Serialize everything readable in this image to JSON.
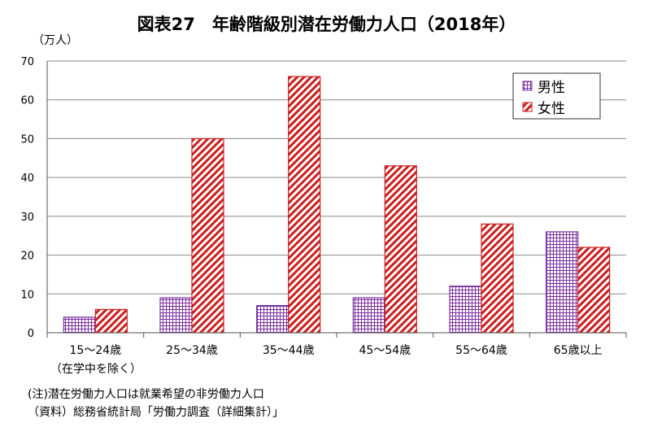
{
  "title": "図表27　年齢階級別潜在労働力人口（2018年）",
  "unit_label": "（万人）",
  "category_sub_label": "（在学中を除く）",
  "notes": {
    "note": "(注)潜在労働力人口は就業希望の非労働力人口",
    "source": "（資料）総務省統計局「労働力調査（詳細集計）」"
  },
  "chart_data": {
    "type": "bar",
    "title": "図表27　年齢階級別潜在労働力人口（2018年）",
    "ylabel": "（万人）",
    "ylim": [
      0,
      70
    ],
    "yticks": [
      0,
      10,
      20,
      30,
      40,
      50,
      60,
      70
    ],
    "grid": true,
    "legend_position": "top-right",
    "categories": [
      "15～24歳",
      "25～34歳",
      "35～44歳",
      "45～54歳",
      "55～64歳",
      "65歳以上"
    ],
    "series": [
      {
        "name": "男性",
        "values": [
          4,
          9,
          7,
          9,
          12,
          26
        ],
        "color": "#7b2fa0",
        "pattern": "grid"
      },
      {
        "name": "女性",
        "values": [
          6,
          50,
          66,
          43,
          28,
          22
        ],
        "color": "#cc1f1f",
        "pattern": "diagonal"
      }
    ]
  }
}
